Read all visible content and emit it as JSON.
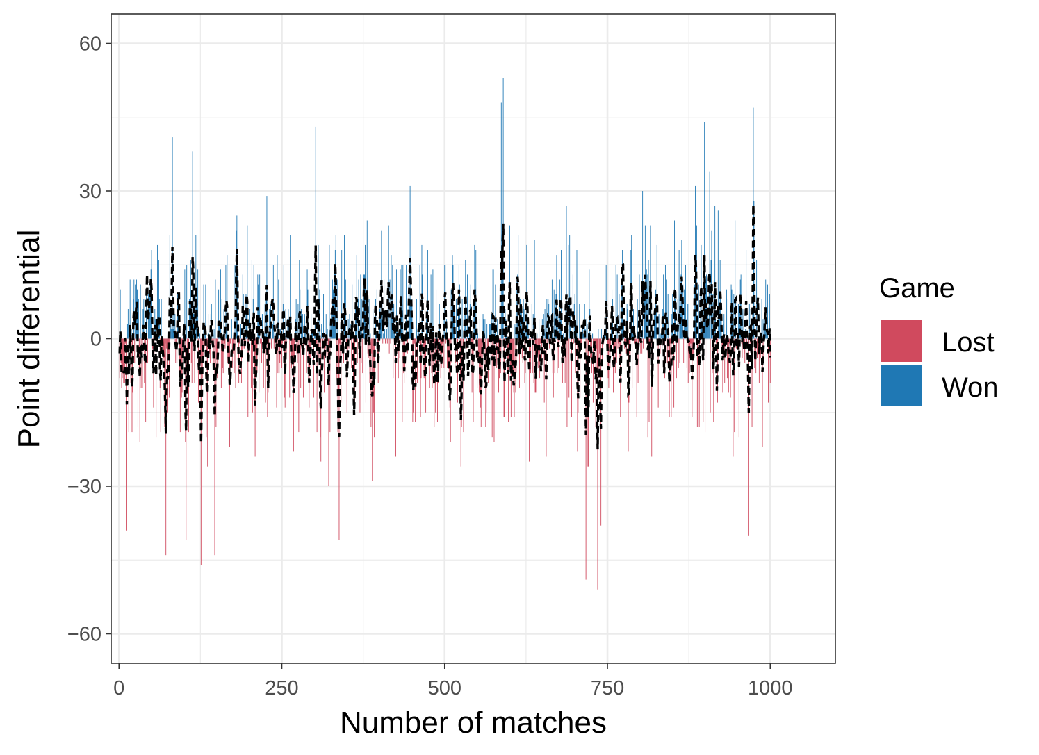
{
  "chart_data": {
    "type": "bar",
    "xlabel": "Number of matches",
    "ylabel": "Point differential",
    "xlim": [
      -12,
      1100
    ],
    "ylim": [
      -66,
      66
    ],
    "x_ticks": [
      0,
      250,
      500,
      750,
      1000
    ],
    "x_tick_labels": [
      "0",
      "250",
      "500",
      "750",
      "1000"
    ],
    "y_ticks": [
      -60,
      -30,
      0,
      30,
      60
    ],
    "y_tick_labels": [
      "−60",
      "−30",
      "0",
      "30",
      "60"
    ],
    "grid": true,
    "legend": {
      "title": "Game",
      "placement": "right",
      "entries": [
        {
          "label": "Lost",
          "color": "#d04a5e"
        },
        {
          "label": "Won",
          "color": "#1f78b4"
        }
      ]
    },
    "series": [
      {
        "kind": "bars",
        "count": 1000,
        "colors": {
          "Lost": "#d04a5e",
          "Won": "#1f78b4"
        },
        "highlights": [
          {
            "x": 590,
            "value": 53,
            "game": "Won"
          },
          {
            "x": 587,
            "value": 48,
            "game": "Won"
          },
          {
            "x": 974,
            "value": 47,
            "game": "Won"
          },
          {
            "x": 899,
            "value": 44,
            "game": "Won"
          },
          {
            "x": 302,
            "value": 43,
            "game": "Won"
          },
          {
            "x": 82,
            "value": 41,
            "game": "Won"
          },
          {
            "x": 735,
            "value": -51,
            "game": "Lost"
          },
          {
            "x": 717,
            "value": -49,
            "game": "Lost"
          },
          {
            "x": 126,
            "value": -46,
            "game": "Lost"
          },
          {
            "x": 72,
            "value": -44,
            "game": "Lost"
          },
          {
            "x": 147,
            "value": -44,
            "game": "Lost"
          },
          {
            "x": 338,
            "value": -41,
            "game": "Lost"
          },
          {
            "x": 103,
            "value": -41,
            "game": "Lost"
          },
          {
            "x": 967,
            "value": -40,
            "game": "Lost"
          },
          {
            "x": 12,
            "value": -39,
            "game": "Lost"
          }
        ]
      },
      {
        "kind": "line",
        "style": "dashed",
        "color": "#000000",
        "description_free": true
      }
    ]
  }
}
